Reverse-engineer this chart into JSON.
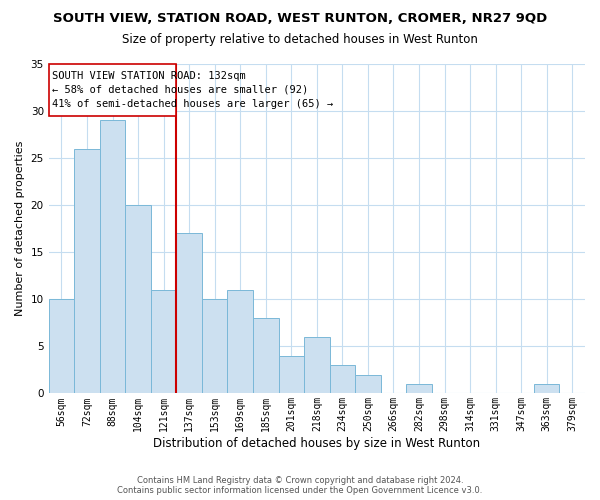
{
  "title": "SOUTH VIEW, STATION ROAD, WEST RUNTON, CROMER, NR27 9QD",
  "subtitle": "Size of property relative to detached houses in West Runton",
  "xlabel": "Distribution of detached houses by size in West Runton",
  "ylabel": "Number of detached properties",
  "bar_labels": [
    "56sqm",
    "72sqm",
    "88sqm",
    "104sqm",
    "121sqm",
    "137sqm",
    "153sqm",
    "169sqm",
    "185sqm",
    "201sqm",
    "218sqm",
    "234sqm",
    "250sqm",
    "266sqm",
    "282sqm",
    "298sqm",
    "314sqm",
    "331sqm",
    "347sqm",
    "363sqm",
    "379sqm"
  ],
  "bar_values": [
    10,
    26,
    29,
    20,
    11,
    17,
    10,
    11,
    8,
    4,
    6,
    3,
    2,
    0,
    1,
    0,
    0,
    0,
    0,
    1,
    0
  ],
  "bar_color": "#cce0f0",
  "bar_edge_color": "#7ab8d8",
  "ylim": [
    0,
    35
  ],
  "yticks": [
    0,
    5,
    10,
    15,
    20,
    25,
    30,
    35
  ],
  "vline_index": 5,
  "vline_color": "#cc0000",
  "annotation_title": "SOUTH VIEW STATION ROAD: 132sqm",
  "annotation_line1": "← 58% of detached houses are smaller (92)",
  "annotation_line2": "41% of semi-detached houses are larger (65) →",
  "annotation_box_facecolor": "#ffffff",
  "annotation_box_edgecolor": "#cc0000",
  "footer1": "Contains HM Land Registry data © Crown copyright and database right 2024.",
  "footer2": "Contains public sector information licensed under the Open Government Licence v3.0.",
  "bg_color": "#ffffff",
  "grid_color": "#c5ddf0",
  "title_fontsize": 9.5,
  "subtitle_fontsize": 8.5,
  "ylabel_fontsize": 8,
  "xlabel_fontsize": 8.5,
  "tick_fontsize": 7,
  "annotation_fontsize": 7.5,
  "footer_fontsize": 6
}
